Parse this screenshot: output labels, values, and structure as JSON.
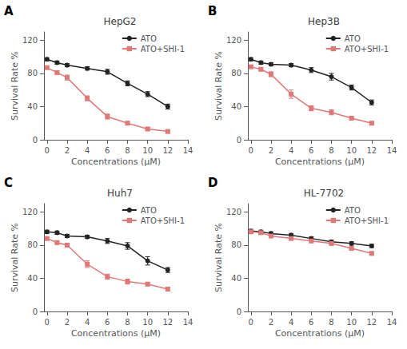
{
  "chart_data": [
    {
      "type": "line",
      "title": "HepG2",
      "annotation": "A",
      "xlabel": "Concentrations (μM)",
      "ylabel": "Survival Rate %",
      "xlim": [
        -0.3,
        14
      ],
      "xticks": [
        0,
        2,
        4,
        6,
        8,
        10,
        12,
        14
      ],
      "ylim": [
        0,
        130
      ],
      "yticks": [
        0,
        40,
        80,
        120
      ],
      "grid": false,
      "legend": "upper right",
      "series": [
        {
          "name": "ATO",
          "color": "#222222",
          "marker": "circle",
          "x": [
            0,
            1,
            2,
            4,
            6,
            8,
            10,
            12
          ],
          "values": [
            97,
            93,
            90,
            86,
            82,
            68,
            55,
            40
          ],
          "errors": [
            2,
            2,
            2,
            2,
            3,
            3,
            3,
            3
          ]
        },
        {
          "name": "ATO+SHI-1",
          "color": "#e07878",
          "marker": "square",
          "x": [
            0,
            1,
            2,
            4,
            6,
            8,
            10,
            12
          ],
          "values": [
            87,
            81,
            75,
            50,
            28,
            20,
            13,
            10
          ],
          "errors": [
            2,
            2,
            3,
            3,
            3,
            2,
            2,
            2
          ]
        }
      ]
    },
    {
      "type": "line",
      "title": "Hep3B",
      "annotation": "B",
      "xlabel": "Concentrations (μM)",
      "ylabel": "Survival Rate %",
      "xlim": [
        -0.3,
        14
      ],
      "xticks": [
        0,
        2,
        4,
        6,
        8,
        10,
        12,
        14
      ],
      "ylim": [
        0,
        130
      ],
      "yticks": [
        0,
        40,
        80,
        120
      ],
      "grid": false,
      "legend": "upper right",
      "series": [
        {
          "name": "ATO",
          "color": "#222222",
          "marker": "circle",
          "x": [
            0,
            1,
            2,
            4,
            6,
            8,
            10,
            12
          ],
          "values": [
            97,
            93,
            91,
            90,
            84,
            76,
            63,
            45
          ],
          "errors": [
            2,
            2,
            2,
            2,
            3,
            4,
            3,
            3
          ]
        },
        {
          "name": "ATO+SHI-1",
          "color": "#e07878",
          "marker": "square",
          "x": [
            0,
            1,
            2,
            4,
            6,
            8,
            10,
            12
          ],
          "values": [
            88,
            85,
            79,
            55,
            38,
            33,
            26,
            20
          ],
          "errors": [
            2,
            2,
            3,
            5,
            3,
            3,
            2,
            2
          ]
        }
      ]
    },
    {
      "type": "line",
      "title": "Huh7",
      "annotation": "C",
      "xlabel": "Concentrations (μM)",
      "ylabel": "Survival Rate %",
      "xlim": [
        -0.3,
        14
      ],
      "xticks": [
        0,
        2,
        4,
        6,
        8,
        10,
        12,
        14
      ],
      "ylim": [
        0,
        130
      ],
      "yticks": [
        0,
        40,
        80,
        120
      ],
      "grid": false,
      "legend": "upper right",
      "series": [
        {
          "name": "ATO",
          "color": "#222222",
          "marker": "circle",
          "x": [
            0,
            1,
            2,
            4,
            6,
            8,
            10,
            12
          ],
          "values": [
            96,
            95,
            91,
            90,
            85,
            79,
            61,
            50
          ],
          "errors": [
            2,
            2,
            2,
            2,
            3,
            4,
            5,
            3
          ]
        },
        {
          "name": "ATO+SHI-1",
          "color": "#e07878",
          "marker": "square",
          "x": [
            0,
            1,
            2,
            4,
            6,
            8,
            10,
            12
          ],
          "values": [
            88,
            83,
            80,
            57,
            42,
            36,
            33,
            27
          ],
          "errors": [
            2,
            2,
            2,
            4,
            3,
            3,
            2,
            2
          ]
        }
      ]
    },
    {
      "type": "line",
      "title": "HL-7702",
      "annotation": "D",
      "xlabel": "Concentrations (μM)",
      "ylabel": "Survival Rate %",
      "xlim": [
        -0.3,
        14
      ],
      "xticks": [
        0,
        2,
        4,
        6,
        8,
        10,
        12,
        14
      ],
      "ylim": [
        0,
        130
      ],
      "yticks": [
        0,
        40,
        80,
        120
      ],
      "grid": false,
      "legend": "upper right",
      "series": [
        {
          "name": "ATO",
          "color": "#222222",
          "marker": "circle",
          "x": [
            0,
            1,
            2,
            4,
            6,
            8,
            10,
            12
          ],
          "values": [
            97,
            96,
            94,
            92,
            88,
            84,
            82,
            79
          ],
          "errors": [
            2,
            2,
            2,
            2,
            2,
            2,
            2,
            2
          ]
        },
        {
          "name": "ATO+SHI-1",
          "color": "#e07878",
          "marker": "square",
          "x": [
            0,
            1,
            2,
            4,
            6,
            8,
            10,
            12
          ],
          "values": [
            96,
            95,
            91,
            88,
            85,
            82,
            76,
            70
          ],
          "errors": [
            2,
            2,
            2,
            2,
            2,
            2,
            2,
            2
          ]
        }
      ]
    }
  ]
}
